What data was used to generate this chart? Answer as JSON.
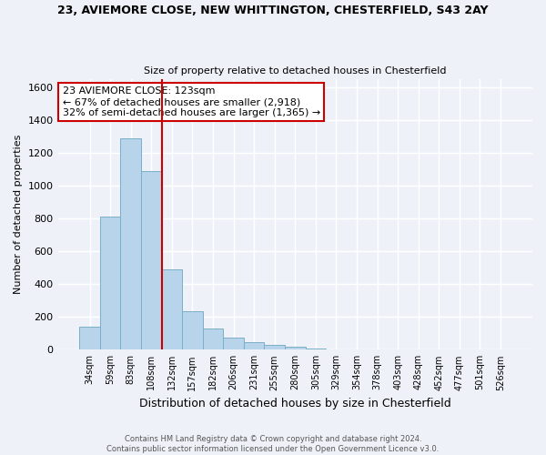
{
  "title_line1": "23, AVIEMORE CLOSE, NEW WHITTINGTON, CHESTERFIELD, S43 2AY",
  "title_line2": "Size of property relative to detached houses in Chesterfield",
  "xlabel": "Distribution of detached houses by size in Chesterfield",
  "ylabel": "Number of detached properties",
  "bar_labels": [
    "34sqm",
    "59sqm",
    "83sqm",
    "108sqm",
    "132sqm",
    "157sqm",
    "182sqm",
    "206sqm",
    "231sqm",
    "255sqm",
    "280sqm",
    "305sqm",
    "329sqm",
    "354sqm",
    "378sqm",
    "403sqm",
    "428sqm",
    "452sqm",
    "477sqm",
    "501sqm",
    "526sqm"
  ],
  "bar_heights": [
    140,
    810,
    1290,
    1090,
    490,
    235,
    130,
    75,
    45,
    28,
    18,
    8,
    3,
    1,
    0,
    0,
    0,
    0,
    0,
    0,
    0
  ],
  "bar_color": "#b8d4ea",
  "bar_edge_color": "#7aafc8",
  "vline_color": "#cc0000",
  "annotation_text": "23 AVIEMORE CLOSE: 123sqm\n← 67% of detached houses are smaller (2,918)\n32% of semi-detached houses are larger (1,365) →",
  "annotation_box_color": "#ffffff",
  "annotation_box_edge": "#cc0000",
  "ylim": [
    0,
    1650
  ],
  "yticks": [
    0,
    200,
    400,
    600,
    800,
    1000,
    1200,
    1400,
    1600
  ],
  "footnote1": "Contains HM Land Registry data © Crown copyright and database right 2024.",
  "footnote2": "Contains public sector information licensed under the Open Government Licence v3.0.",
  "background_color": "#eef2f8",
  "grid_color": "#ffffff"
}
